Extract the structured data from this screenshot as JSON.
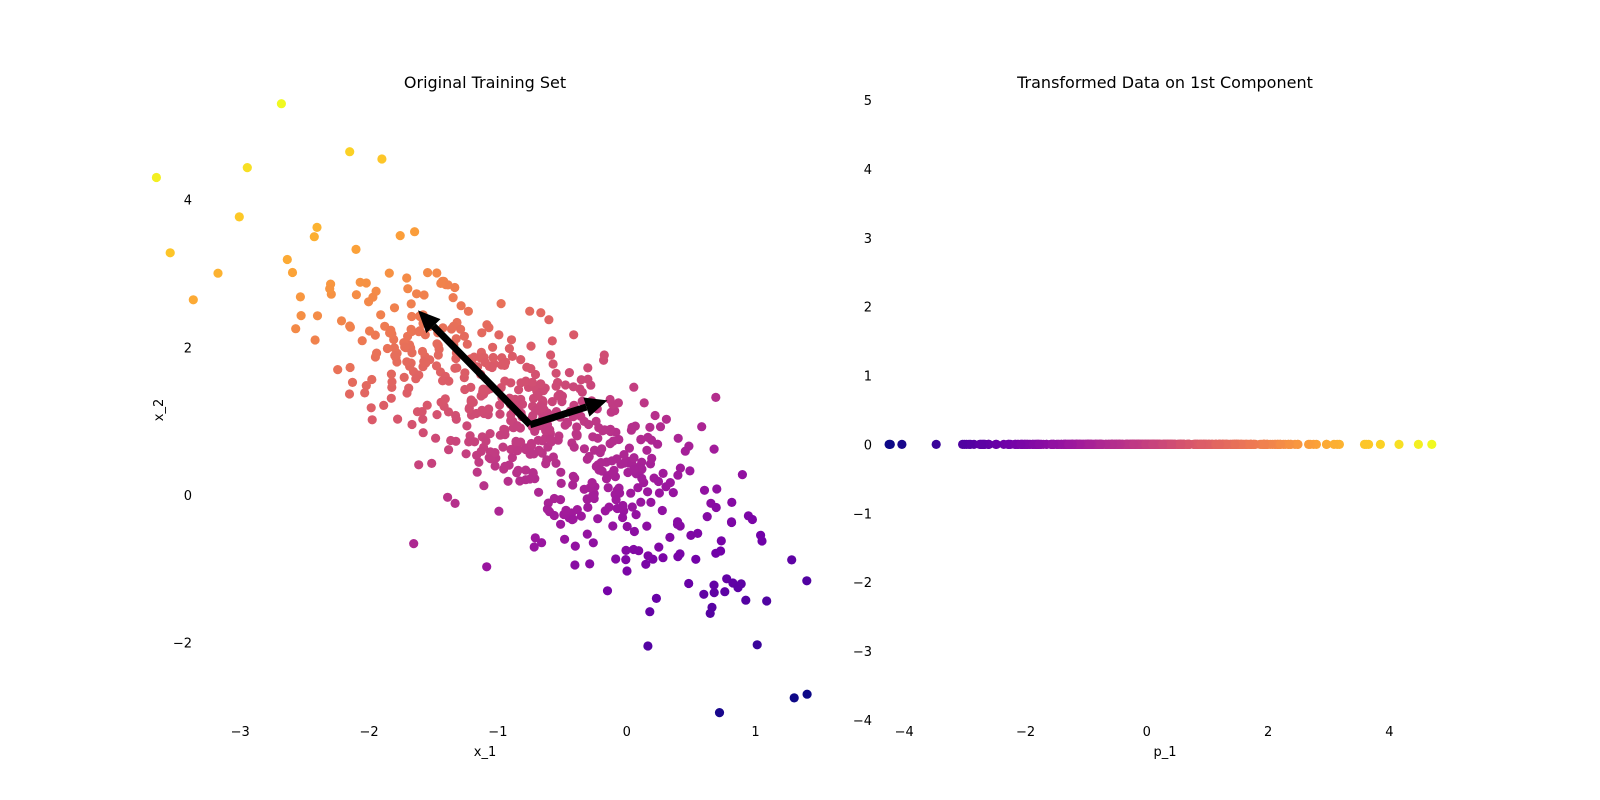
{
  "chart_data": [
    {
      "type": "scatter",
      "title": "Original Training Set",
      "xlabel": "x_1",
      "ylabel": "x_2",
      "xlim": [
        -3.7,
        1.5
      ],
      "ylim": [
        -3.05,
        5.35
      ],
      "xticks": [
        -3,
        -2,
        -1,
        0,
        1
      ],
      "xtick_labels": [
        "−3",
        "−2",
        "−1",
        "0",
        "1"
      ],
      "yticks": [
        -2,
        0,
        2,
        4
      ],
      "ytick_labels": [
        "−2",
        "0",
        "2",
        "4"
      ],
      "grid": false,
      "colormap": "plasma",
      "color_stops": [
        "#0d0887",
        "#46039f",
        "#7201a8",
        "#9c179e",
        "#bd3786",
        "#d8576b",
        "#ed7953",
        "#fb9f3a",
        "#fdca26",
        "#f0f921"
      ],
      "sample": {
        "n_points": 600,
        "mean": [
          -0.75,
          0.95
        ],
        "pc1_direction": [
          -0.6,
          0.8
        ],
        "pc1_std": 1.3,
        "pc2_direction": [
          0.8,
          0.6
        ],
        "pc2_std": 0.42,
        "color_by": "projection_on_pc1"
      },
      "highlight_points": [
        {
          "x": -3.65,
          "y": 4.3
        },
        {
          "x": -2.68,
          "y": 5.3
        },
        {
          "x": -2.15,
          "y": 4.65
        },
        {
          "x": -1.9,
          "y": 4.55
        },
        {
          "x": 0.72,
          "y": -2.95
        },
        {
          "x": 1.3,
          "y": -2.75
        },
        {
          "x": 1.4,
          "y": -2.7
        }
      ],
      "component_arrows": [
        {
          "name": "",
          "from": [
            -0.75,
            0.95
          ],
          "to": [
            -1.62,
            2.5
          ]
        },
        {
          "name": "",
          "from": [
            -0.75,
            0.95
          ],
          "to": [
            -0.15,
            1.28
          ]
        }
      ]
    },
    {
      "type": "scatter",
      "title": "Transformed Data on 1st Component",
      "xlabel": "p_1",
      "ylabel": "",
      "xlim": [
        -4.4,
        5.0
      ],
      "ylim": [
        -4.0,
        5.0
      ],
      "xticks": [
        -4,
        -2,
        0,
        2,
        4
      ],
      "xtick_labels": [
        "−4",
        "−2",
        "0",
        "2",
        "4"
      ],
      "yticks": [
        -4,
        -3,
        -2,
        -1,
        0,
        1,
        2,
        3,
        4,
        5
      ],
      "ytick_labels": [
        "−4",
        "−3",
        "−2",
        "−1",
        "0",
        "1",
        "2",
        "3",
        "4",
        "5"
      ],
      "grid": false,
      "colormap": "plasma",
      "points_on_line_y": 0,
      "p1_range": [
        -4.25,
        4.7
      ]
    }
  ]
}
